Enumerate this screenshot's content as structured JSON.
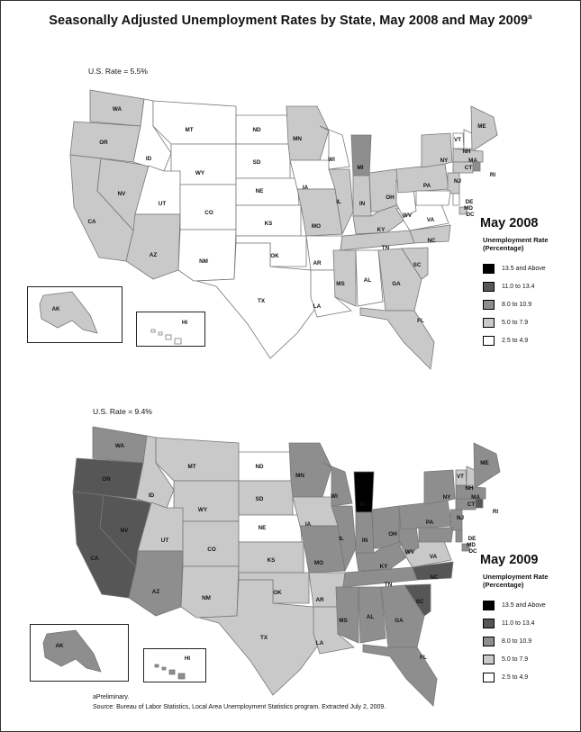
{
  "title": "Seasonally Adjusted Unemployment Rates by State, May 2008 and May 2009",
  "title_sup": "a",
  "colors": {
    "c5": "#000000",
    "c4": "#565656",
    "c3": "#8e8e8e",
    "c2": "#c9c9c9",
    "c1": "#ffffff"
  },
  "legend_categories": [
    "13.5 and Above",
    "11.0 to 13.4",
    "8.0 to 10.9",
    "5.0 to 7.9",
    "2.5 to 4.9"
  ],
  "maps": [
    {
      "label": "May 2008",
      "us_rate": "U.S. Rate = 5.5%",
      "legend_title": [
        "Unemployment Rate",
        "(Percentage)"
      ],
      "states": {
        "WA": "c2",
        "OR": "c2",
        "CA": "c2",
        "NV": "c2",
        "ID": "c1",
        "MT": "c1",
        "WY": "c1",
        "UT": "c1",
        "CO": "c1",
        "AZ": "c2",
        "NM": "c1",
        "ND": "c1",
        "SD": "c1",
        "NE": "c1",
        "KS": "c1",
        "OK": "c1",
        "TX": "c1",
        "MN": "c2",
        "IA": "c1",
        "MO": "c2",
        "AR": "c1",
        "LA": "c1",
        "WI": "c1",
        "IL": "c2",
        "MI": "c3",
        "IN": "c2",
        "OH": "c2",
        "KY": "c2",
        "TN": "c2",
        "MS": "c2",
        "AL": "c1",
        "GA": "c2",
        "FL": "c2",
        "SC": "c2",
        "NC": "c2",
        "VA": "c1",
        "WV": "c1",
        "PA": "c2",
        "NY": "c2",
        "VT": "c1",
        "NH": "c1",
        "ME": "c2",
        "MA": "c2",
        "RI": "c3",
        "CT": "c2",
        "NJ": "c2",
        "DE": "c1",
        "MD": "c1",
        "DC": "c2",
        "AK": "c2",
        "HI": "c1"
      }
    },
    {
      "label": "May 2009",
      "us_rate": "U.S. Rate = 9.4%",
      "legend_title": [
        "Unemployment Rate",
        "(Percentage)"
      ],
      "states": {
        "WA": "c3",
        "OR": "c4",
        "CA": "c4",
        "NV": "c4",
        "ID": "c2",
        "MT": "c2",
        "WY": "c2",
        "UT": "c2",
        "CO": "c2",
        "AZ": "c3",
        "NM": "c2",
        "ND": "c1",
        "SD": "c2",
        "NE": "c1",
        "KS": "c2",
        "OK": "c2",
        "TX": "c2",
        "MN": "c3",
        "IA": "c2",
        "MO": "c3",
        "AR": "c2",
        "LA": "c2",
        "WI": "c3",
        "IL": "c3",
        "MI": "c5",
        "IN": "c3",
        "OH": "c3",
        "KY": "c3",
        "TN": "c3",
        "MS": "c3",
        "AL": "c3",
        "GA": "c3",
        "FL": "c3",
        "SC": "c4",
        "NC": "c4",
        "VA": "c2",
        "WV": "c3",
        "PA": "c3",
        "NY": "c3",
        "VT": "c2",
        "NH": "c2",
        "ME": "c3",
        "MA": "c3",
        "RI": "c4",
        "CT": "c3",
        "NJ": "c3",
        "DE": "c3",
        "MD": "c3",
        "DC": "c3",
        "AK": "c3",
        "HI": "c3"
      }
    }
  ],
  "footnote": "aPreliminary.",
  "source": "Source: Bureau of Labor Statistics, Local Area Unemployment Statistics program. Extracted July 2, 2009."
}
